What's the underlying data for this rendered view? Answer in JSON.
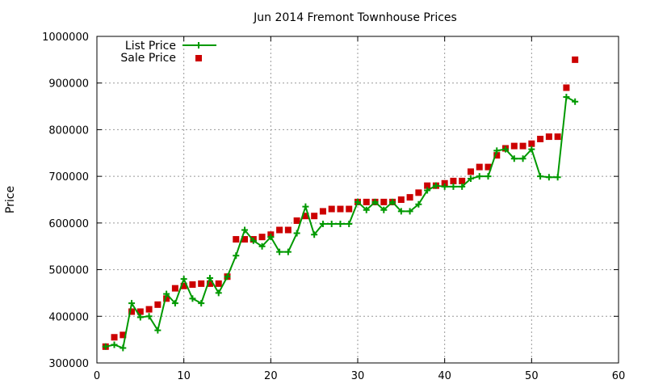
{
  "chart_data": {
    "type": "line",
    "title": "Jun 2014 Fremont Townhouse Prices",
    "xlabel": "",
    "ylabel": "Price",
    "xlim": [
      0,
      60
    ],
    "ylim": [
      300000,
      1000000
    ],
    "x_ticks": [
      0,
      10,
      20,
      30,
      40,
      50,
      60
    ],
    "y_ticks": [
      300000,
      400000,
      500000,
      600000,
      700000,
      800000,
      900000,
      1000000
    ],
    "grid": true,
    "legend_position": "top-left",
    "x": [
      1,
      2,
      3,
      4,
      5,
      6,
      7,
      8,
      9,
      10,
      11,
      12,
      13,
      14,
      15,
      16,
      17,
      18,
      19,
      20,
      21,
      22,
      23,
      24,
      25,
      26,
      27,
      28,
      29,
      30,
      31,
      32,
      33,
      34,
      35,
      36,
      37,
      38,
      39,
      40,
      41,
      42,
      43,
      44,
      45,
      46,
      47,
      48,
      49,
      50,
      51,
      52,
      53,
      54,
      55
    ],
    "series": [
      {
        "name": "List Price",
        "style": "line-plus",
        "color": "#009900",
        "values": [
          335000,
          339000,
          332000,
          428000,
          398000,
          400000,
          370000,
          448000,
          428000,
          480000,
          438000,
          428000,
          482000,
          450000,
          485000,
          530000,
          585000,
          562000,
          550000,
          570000,
          538000,
          538000,
          578000,
          635000,
          575000,
          598000,
          598000,
          598000,
          598000,
          645000,
          628000,
          645000,
          628000,
          645000,
          625000,
          625000,
          640000,
          670000,
          680000,
          678000,
          678000,
          678000,
          695000,
          700000,
          700000,
          755000,
          758000,
          738000,
          738000,
          758000,
          700000,
          698000,
          698000,
          870000,
          860000
        ]
      },
      {
        "name": "Sale Price",
        "style": "square",
        "color": "#cc0000",
        "values": [
          335000,
          355000,
          360000,
          410000,
          410000,
          415000,
          425000,
          438000,
          460000,
          465000,
          468000,
          470000,
          470000,
          470000,
          485000,
          565000,
          565000,
          565000,
          570000,
          575000,
          585000,
          585000,
          605000,
          615000,
          615000,
          625000,
          630000,
          630000,
          630000,
          645000,
          645000,
          645000,
          645000,
          645000,
          650000,
          655000,
          665000,
          680000,
          680000,
          685000,
          690000,
          690000,
          710000,
          720000,
          720000,
          745000,
          760000,
          765000,
          765000,
          770000,
          780000,
          785000,
          785000,
          890000,
          950000
        ]
      }
    ]
  }
}
